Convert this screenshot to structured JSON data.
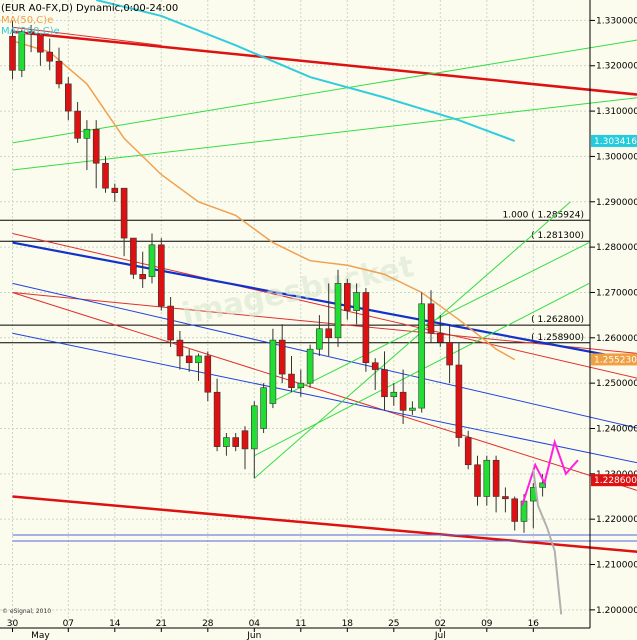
{
  "header": {
    "title": "(EUR A0-FX,D) Dynamic,0:00-24:00",
    "ma50": "MA(50,C)e",
    "ma200": "MA(200,C)e",
    "ma50_color": "#f0a050",
    "ma200_color": "#33ccdd"
  },
  "watermark": "imagesbucket",
  "footer": "© eSignal, 2010",
  "chart_data": {
    "type": "candlestick",
    "ylim": [
      1.196,
      1.3345
    ],
    "y_ticks": [
      1.2,
      1.21,
      1.22,
      1.23,
      1.24,
      1.25,
      1.26,
      1.27,
      1.28,
      1.29,
      1.3,
      1.31,
      1.32,
      1.33
    ],
    "y_tick_labels": [
      "1.200000",
      "1.210000",
      "1.220000",
      "1.230000",
      "1.240000",
      "1.250000",
      "1.260000",
      "1.270000",
      "1.280000",
      "1.290000",
      "1.300000",
      "1.310000",
      "1.320000",
      "1.330000"
    ],
    "x_ticks": [
      {
        "label": "30",
        "i": 0
      },
      {
        "label": "07",
        "i": 6
      },
      {
        "label": "14",
        "i": 11
      },
      {
        "label": "21",
        "i": 16
      },
      {
        "label": "28",
        "i": 21
      },
      {
        "label": "04",
        "i": 26
      },
      {
        "label": "11",
        "i": 31
      },
      {
        "label": "18",
        "i": 36
      },
      {
        "label": "25",
        "i": 41
      },
      {
        "label": "02",
        "i": 46
      },
      {
        "label": "09",
        "i": 51
      },
      {
        "label": "16",
        "i": 56
      }
    ],
    "month_labels": [
      {
        "label": "May",
        "i": 3
      },
      {
        "label": "Jun",
        "i": 26
      },
      {
        "label": "Jul",
        "i": 46
      }
    ],
    "candles": [
      [
        1.3265,
        1.33,
        1.317,
        1.319
      ],
      [
        1.319,
        1.328,
        1.3175,
        1.3275
      ],
      [
        1.3275,
        1.329,
        1.323,
        1.327
      ],
      [
        1.327,
        1.327,
        1.32,
        1.323
      ],
      [
        1.323,
        1.326,
        1.319,
        1.321
      ],
      [
        1.321,
        1.324,
        1.315,
        1.316
      ],
      [
        1.316,
        1.3175,
        1.308,
        1.31
      ],
      [
        1.31,
        1.312,
        1.303,
        1.304
      ],
      [
        1.304,
        1.308,
        1.297,
        1.306
      ],
      [
        1.306,
        1.308,
        1.293,
        1.2985
      ],
      [
        1.2985,
        1.3,
        1.292,
        1.293
      ],
      [
        1.293,
        1.294,
        1.29,
        1.292
      ],
      [
        1.293,
        1.293,
        1.278,
        1.282
      ],
      [
        1.282,
        1.282,
        1.273,
        1.274
      ],
      [
        1.274,
        1.279,
        1.271,
        1.273
      ],
      [
        1.2735,
        1.283,
        1.272,
        1.2805
      ],
      [
        1.2805,
        1.282,
        1.266,
        1.267
      ],
      [
        1.267,
        1.269,
        1.258,
        1.2595
      ],
      [
        1.2595,
        1.2615,
        1.253,
        1.256
      ],
      [
        1.256,
        1.2575,
        1.2525,
        1.2545
      ],
      [
        1.2545,
        1.2565,
        1.2505,
        1.256
      ],
      [
        1.256,
        1.257,
        1.246,
        1.248
      ],
      [
        1.248,
        1.251,
        1.235,
        1.236
      ],
      [
        1.236,
        1.239,
        1.234,
        1.238
      ],
      [
        1.238,
        1.239,
        1.235,
        1.236
      ],
      [
        1.2395,
        1.2405,
        1.231,
        1.2355
      ],
      [
        1.2355,
        1.246,
        1.229,
        1.245
      ],
      [
        1.24,
        1.25,
        1.239,
        1.249
      ],
      [
        1.2455,
        1.262,
        1.2445,
        1.2595
      ],
      [
        1.2595,
        1.263,
        1.25,
        1.252
      ],
      [
        1.252,
        1.256,
        1.248,
        1.249
      ],
      [
        1.249,
        1.253,
        1.247,
        1.25
      ],
      [
        1.25,
        1.2585,
        1.249,
        1.2575
      ],
      [
        1.2575,
        1.265,
        1.256,
        1.262
      ],
      [
        1.262,
        1.272,
        1.256,
        1.26
      ],
      [
        1.26,
        1.275,
        1.258,
        1.272
      ],
      [
        1.272,
        1.273,
        1.264,
        1.266
      ],
      [
        1.266,
        1.272,
        1.263,
        1.27
      ],
      [
        1.27,
        1.271,
        1.2525,
        1.2545
      ],
      [
        1.2545,
        1.2555,
        1.2485,
        1.253
      ],
      [
        1.253,
        1.257,
        1.244,
        1.247
      ],
      [
        1.247,
        1.25,
        1.245,
        1.248
      ],
      [
        1.248,
        1.253,
        1.241,
        1.244
      ],
      [
        1.244,
        1.246,
        1.243,
        1.2445
      ],
      [
        1.2445,
        1.27,
        1.2435,
        1.2675
      ],
      [
        1.2675,
        1.2705,
        1.259,
        1.261
      ],
      [
        1.261,
        1.265,
        1.258,
        1.259
      ],
      [
        1.259,
        1.263,
        1.25,
        1.254
      ],
      [
        1.254,
        1.259,
        1.236,
        1.238
      ],
      [
        1.238,
        1.2395,
        1.231,
        1.232
      ],
      [
        1.232,
        1.234,
        1.223,
        1.225
      ],
      [
        1.225,
        1.234,
        1.223,
        1.233
      ],
      [
        1.233,
        1.234,
        1.2215,
        1.225
      ],
      [
        1.225,
        1.227,
        1.2215,
        1.2245
      ],
      [
        1.2245,
        1.225,
        1.2175,
        1.2195
      ],
      [
        1.2195,
        1.2255,
        1.217,
        1.224
      ],
      [
        1.224,
        1.228,
        1.218,
        1.227
      ],
      [
        1.227,
        1.23,
        1.225,
        1.228
      ]
    ],
    "lines": [
      {
        "role": "red-thick",
        "x1": 0,
        "y1": 1.3275,
        "x2": 80,
        "y2": 1.311
      },
      {
        "role": "red-thin",
        "x1": 0,
        "y1": 1.3285,
        "x2": 16,
        "y2": 1.3245
      },
      {
        "role": "red-thick",
        "x1": 0,
        "y1": 1.225,
        "x2": 80,
        "y2": 1.2105
      },
      {
        "role": "red-thin",
        "x1": 0,
        "y1": 1.27,
        "x2": 80,
        "y2": 1.254
      },
      {
        "role": "red-thin",
        "x1": 0,
        "y1": 1.283,
        "x2": 80,
        "y2": 1.245
      },
      {
        "role": "red-thin",
        "x1": 0,
        "y1": 1.27,
        "x2": 80,
        "y2": 1.218
      },
      {
        "role": "blue-thick",
        "x1": 0,
        "y1": 1.281,
        "x2": 80,
        "y2": 1.25
      },
      {
        "role": "blue-thin",
        "x1": 0,
        "y1": 1.272,
        "x2": 80,
        "y2": 1.234
      },
      {
        "role": "blue-thin",
        "x1": 0,
        "y1": 1.261,
        "x2": 80,
        "y2": 1.227
      },
      {
        "role": "blue-flat",
        "x1": 0,
        "y1": 1.2165,
        "x2": 80,
        "y2": 1.2165
      },
      {
        "role": "blue-flat",
        "x1": 0,
        "y1": 1.2152,
        "x2": 80,
        "y2": 1.2152
      },
      {
        "role": "green",
        "x1": 0,
        "y1": 1.303,
        "x2": 80,
        "y2": 1.33
      },
      {
        "role": "green",
        "x1": 0,
        "y1": 1.297,
        "x2": 80,
        "y2": 1.316
      },
      {
        "role": "green",
        "x1": 26,
        "y1": 1.229,
        "x2": 60,
        "y2": 1.29
      },
      {
        "role": "green",
        "x1": 26,
        "y1": 1.234,
        "x2": 62,
        "y2": 1.272
      },
      {
        "role": "green",
        "x1": 28,
        "y1": 1.246,
        "x2": 62,
        "y2": 1.281
      }
    ],
    "ma50": [
      [
        0,
        1.3255
      ],
      [
        4,
        1.323
      ],
      [
        8,
        1.316
      ],
      [
        12,
        1.304
      ],
      [
        16,
        1.296
      ],
      [
        20,
        1.29
      ],
      [
        24,
        1.287
      ],
      [
        28,
        1.281
      ],
      [
        32,
        1.277
      ],
      [
        36,
        1.276
      ],
      [
        40,
        1.274
      ],
      [
        44,
        1.27
      ],
      [
        48,
        1.264
      ],
      [
        52,
        1.2575
      ],
      [
        54,
        1.2552
      ]
    ],
    "ma200": [
      [
        9,
        1.3345
      ],
      [
        16,
        1.331
      ],
      [
        24,
        1.3245
      ],
      [
        32,
        1.3175
      ],
      [
        40,
        1.313
      ],
      [
        48,
        1.308
      ],
      [
        54,
        1.3034
      ]
    ],
    "h_levels": [
      {
        "value": 1.285924,
        "label": "1.000  ( 1.285924)"
      },
      {
        "value": 1.2813,
        "label": "( 1.281300)"
      },
      {
        "value": 1.2628,
        "label": "( 1.262800)"
      },
      {
        "value": 1.2589,
        "label": "( 1.258900)"
      }
    ],
    "magenta_path": [
      [
        54.8,
        1.223
      ],
      [
        56.2,
        1.232
      ],
      [
        57.2,
        1.228
      ],
      [
        58.3,
        1.237
      ],
      [
        59.5,
        1.23
      ],
      [
        60.8,
        1.233
      ]
    ],
    "gray_path": [
      [
        56,
        1.231
      ],
      [
        56.5,
        1.223
      ],
      [
        57.5,
        1.218
      ],
      [
        58.3,
        1.213
      ],
      [
        59,
        1.199
      ]
    ],
    "price_tags": [
      {
        "value": 1.303416,
        "label": "1.303416",
        "color": "#22ccdd"
      },
      {
        "value": 1.25523,
        "label": "1.255230",
        "color": "#f0a040"
      },
      {
        "value": 1.2286,
        "label": "1.228600",
        "color": "#dd1111"
      }
    ]
  }
}
